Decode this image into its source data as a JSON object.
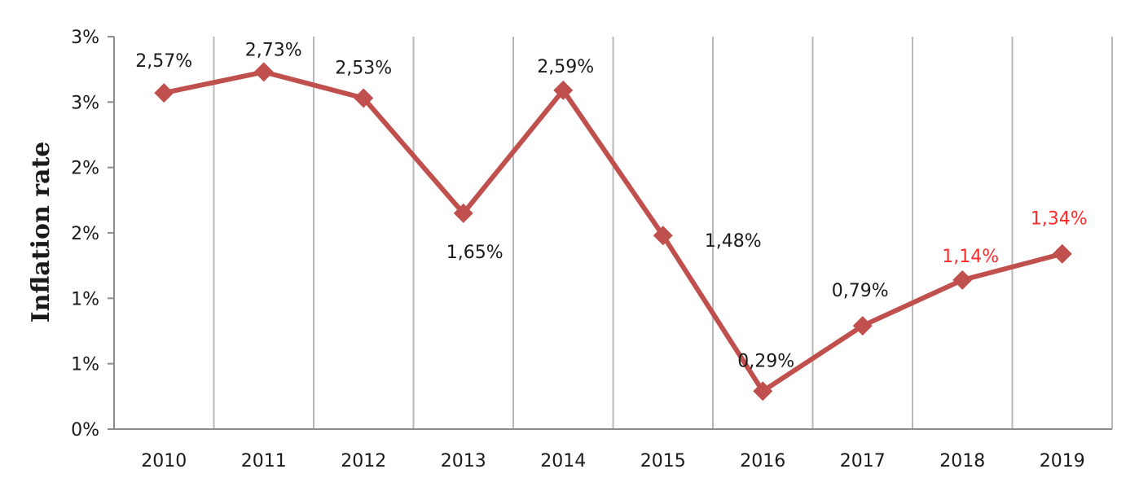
{
  "chart_data": {
    "type": "line",
    "title": "",
    "xlabel": "",
    "ylabel": "Inflation rate",
    "categories": [
      "2010",
      "2011",
      "2012",
      "2013",
      "2014",
      "2015",
      "2016",
      "2017",
      "2018",
      "2019"
    ],
    "values": [
      2.57,
      2.73,
      2.53,
      1.65,
      2.59,
      1.48,
      0.29,
      0.79,
      1.14,
      1.34
    ],
    "data_labels": [
      "2,57%",
      "2,73%",
      "2,53%",
      "1,65%",
      "2,59%",
      "1,48%",
      "0,29%",
      "0,79%",
      "1,14%",
      "1,34%"
    ],
    "ylim": [
      0,
      3
    ],
    "y_tick_values": [
      0,
      0.5,
      1,
      1.5,
      2,
      2.5,
      3
    ],
    "y_tick_labels": [
      "0%",
      "1%",
      "1%",
      "2%",
      "2%",
      "3%",
      "3%"
    ],
    "grid": "vertical",
    "legend": "none",
    "colors": {
      "series": "#c0504d",
      "grid": "#b8b8b8",
      "axis": "#8c8c8c",
      "label": "#1a1a1a",
      "highlight_label": "#ff2a2a"
    },
    "highlighted_labels": [
      8,
      9
    ]
  }
}
